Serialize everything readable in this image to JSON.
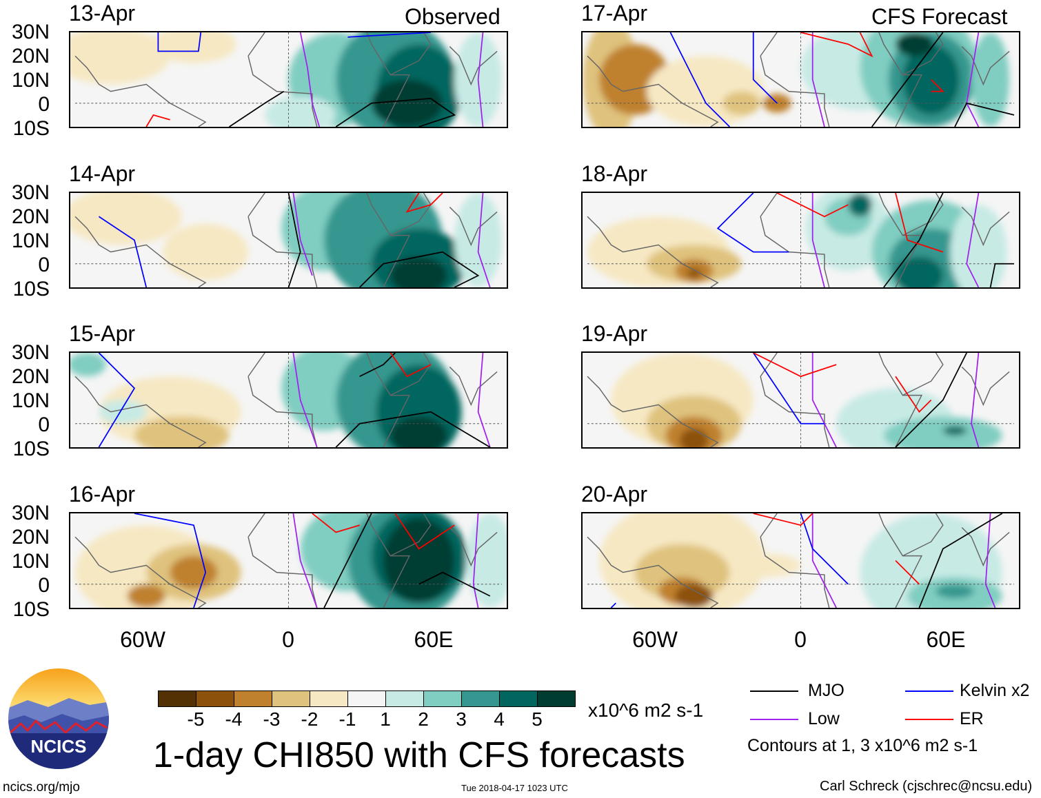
{
  "headers": {
    "observed": "Observed",
    "forecast": "CFS Forecast"
  },
  "panels_left": [
    {
      "date": "13-Apr"
    },
    {
      "date": "14-Apr"
    },
    {
      "date": "15-Apr"
    },
    {
      "date": "16-Apr"
    }
  ],
  "panels_right": [
    {
      "date": "17-Apr"
    },
    {
      "date": "18-Apr"
    },
    {
      "date": "19-Apr"
    },
    {
      "date": "20-Apr"
    }
  ],
  "lat_labels": [
    "30N",
    "20N",
    "10N",
    "0",
    "10S"
  ],
  "lon_labels": [
    "60W",
    "0",
    "60E"
  ],
  "colorbar": {
    "colors": [
      "#543005",
      "#8c510a",
      "#bf812d",
      "#dfc27d",
      "#f6e8c3",
      "#f5f5f5",
      "#c7eae5",
      "#80cdc1",
      "#35978f",
      "#01665e",
      "#003c30"
    ],
    "labels": [
      "-5",
      "-4",
      "-3",
      "-2",
      "-1",
      "1",
      "2",
      "3",
      "4",
      "5"
    ],
    "units": "x10^6 m2 s-1"
  },
  "title": "1-day CHI850 with CFS forecasts",
  "legend": [
    {
      "label": "MJO",
      "color": "#000000"
    },
    {
      "label": "Kelvin x2",
      "color": "#0000ff"
    },
    {
      "label": "Low",
      "color": "#a020f0"
    },
    {
      "label": "ER",
      "color": "#ff0000"
    }
  ],
  "contours_note": "Contours at 1, 3 x10^6 m2 s-1",
  "logo": {
    "text": "NCICS"
  },
  "footer": {
    "url": "ncics.org/mjo",
    "timestamp": "Tue 2018-04-17 1023 UTC",
    "author": "Carl Schreck (cjschrec@ncsu.edu)"
  }
}
